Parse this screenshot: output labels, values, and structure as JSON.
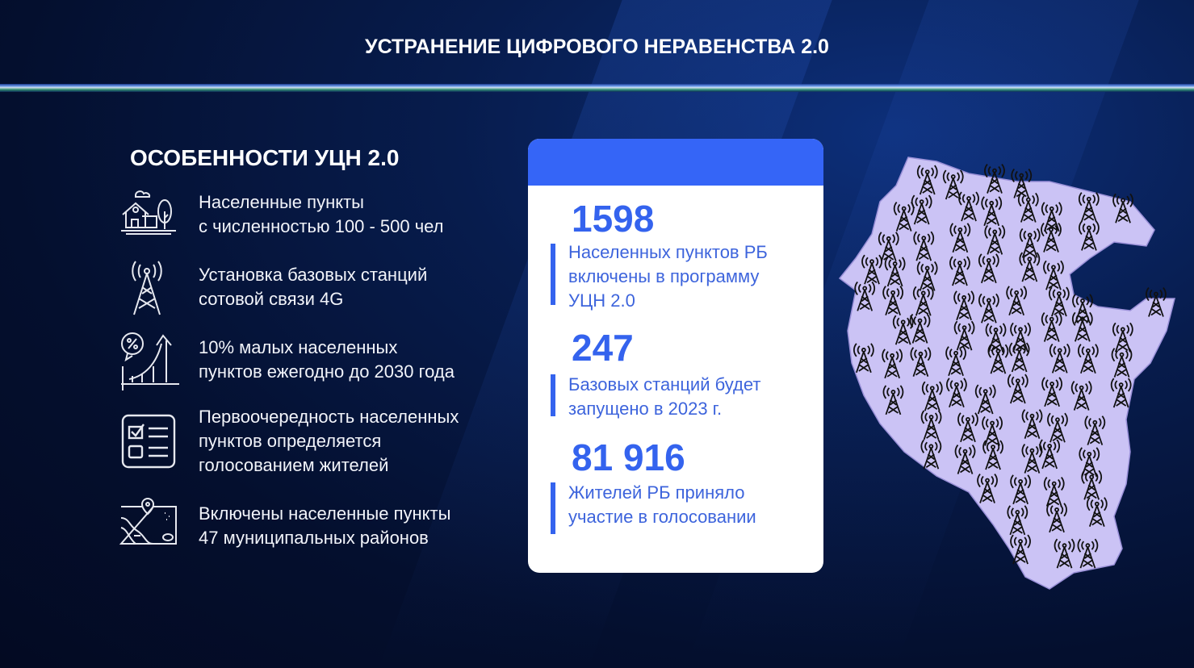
{
  "header": {
    "title": "УСТРАНЕНИЕ ЦИФРОВОГО НЕРАВЕНСТВА 2.0"
  },
  "features": {
    "title": "ОСОБЕННОСТИ УЦН 2.0",
    "items": [
      {
        "icon": "village-house-icon",
        "lines": [
          "Населенные пункты",
          "с численностью 100 - 500 чел"
        ]
      },
      {
        "icon": "cell-tower-icon",
        "lines": [
          "Установка базовых станций",
          "сотовой связи 4G"
        ]
      },
      {
        "icon": "percent-growth-chart-icon",
        "lines": [
          "10% малых населенных",
          "пунктов ежегодно до 2030 года"
        ]
      },
      {
        "icon": "checklist-icon",
        "lines": [
          "Первоочередность населенных",
          "пунктов определяется",
          "голосованием жителей"
        ]
      },
      {
        "icon": "map-pin-icon",
        "lines": [
          "Включены населенные пункты",
          "47 муниципальных районов"
        ]
      }
    ]
  },
  "stats": [
    {
      "value": "1598",
      "lines": [
        "Населенных пунктов РБ",
        "включены в программу",
        "УЦН 2.0"
      ]
    },
    {
      "value": "247",
      "lines": [
        "Базовых станций будет",
        "запущено в 2023 г."
      ]
    },
    {
      "value": "81 916",
      "lines": [
        "Жителей РБ приняло",
        "участие в голосовании"
      ]
    }
  ],
  "map": {
    "fill": "#cbc3f5",
    "icon": "cell-tower-icon"
  },
  "colors": {
    "accent": "#3565f7",
    "stat_text": "#3463ee"
  }
}
